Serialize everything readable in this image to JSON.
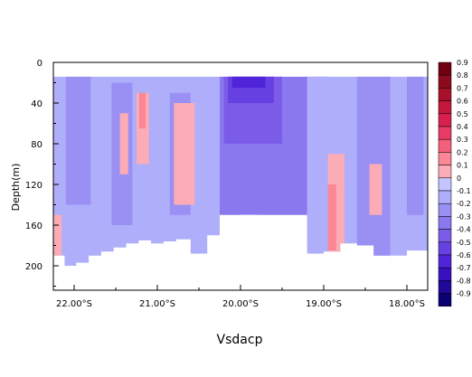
{
  "chart_data": {
    "type": "heatmap",
    "xlabel": "Vsdacp",
    "ylabel": "Depth(m)",
    "x_ticks": [
      "22.00°S",
      "21.00°S",
      "20.00°S",
      "19.00°S",
      "18.00°S"
    ],
    "x_tick_values": [
      22.0,
      21.0,
      20.0,
      19.0,
      18.0
    ],
    "xlim": [
      22.25,
      17.75
    ],
    "y_ticks": [
      "0",
      "40",
      "80",
      "120",
      "160",
      "200"
    ],
    "y_tick_values": [
      0,
      40,
      80,
      120,
      160,
      200
    ],
    "ylim": [
      0,
      224
    ],
    "colorbar_labels": [
      "0.9",
      "0.8",
      "0.7",
      "0.6",
      "0.5",
      "0.4",
      "0.3",
      "0.2",
      "0.1",
      "0",
      "-0.1",
      "-0.2",
      "-0.3",
      "-0.4",
      "-0.5",
      "-0.6",
      "-0.7",
      "-0.8",
      "-0.9"
    ],
    "colorbar_colors": [
      "#6e0010",
      "#8c0a1c",
      "#a8102a",
      "#c4163a",
      "#d8204e",
      "#e83a64",
      "#f4607c",
      "#fa8696",
      "#fcacb6",
      "#c4c4ff",
      "#aeaefa",
      "#9a90f4",
      "#8a78ee",
      "#7a5ce8",
      "#6640e0",
      "#5024d8",
      "#3810c0",
      "#20089a",
      "#0a0070"
    ],
    "data_start_depth": 14,
    "columns": [
      {
        "x": 22.18,
        "bottom": 190
      },
      {
        "x": 22.05,
        "bottom": 207
      },
      {
        "x": 21.9,
        "bottom": 197
      },
      {
        "x": 21.75,
        "bottom": 190
      },
      {
        "x": 21.6,
        "bottom": 186
      },
      {
        "x": 21.45,
        "bottom": 182
      },
      {
        "x": 21.3,
        "bottom": 178
      },
      {
        "x": 21.15,
        "bottom": 175
      },
      {
        "x": 21.0,
        "bottom": 178
      },
      {
        "x": 20.85,
        "bottom": 176
      },
      {
        "x": 20.7,
        "bottom": 174
      },
      {
        "x": 20.5,
        "bottom": 188
      },
      {
        "x": 20.3,
        "bottom": 170
      },
      {
        "x": 20.1,
        "bottom": 152
      },
      {
        "x": 19.9,
        "bottom": 150
      },
      {
        "x": 19.7,
        "bottom": 156
      },
      {
        "x": 19.5,
        "bottom": 165
      },
      {
        "x": 19.3,
        "bottom": 180
      },
      {
        "x": 19.1,
        "bottom": 188
      },
      {
        "x": 18.9,
        "bottom": 186
      },
      {
        "x": 18.7,
        "bottom": 178
      },
      {
        "x": 18.5,
        "bottom": 180
      },
      {
        "x": 18.3,
        "bottom": 190
      },
      {
        "x": 18.1,
        "bottom": 205
      },
      {
        "x": 17.9,
        "bottom": 185
      }
    ],
    "regions": [
      {
        "x0": 22.25,
        "x1": 20.25,
        "y0": 14,
        "y1": 200,
        "value": -0.1
      },
      {
        "x0": 22.1,
        "x1": 21.8,
        "y0": 14,
        "y1": 140,
        "value": -0.2
      },
      {
        "x0": 21.55,
        "x1": 21.3,
        "y0": 20,
        "y1": 160,
        "value": -0.2
      },
      {
        "x0": 20.85,
        "x1": 20.6,
        "y0": 30,
        "y1": 150,
        "value": -0.2
      },
      {
        "x0": 21.25,
        "x1": 21.1,
        "y0": 30,
        "y1": 100,
        "value": 0.1
      },
      {
        "x0": 21.45,
        "x1": 21.35,
        "y0": 50,
        "y1": 110,
        "value": 0.1
      },
      {
        "x0": 20.8,
        "x1": 20.55,
        "y0": 40,
        "y1": 140,
        "value": 0.1
      },
      {
        "x0": 21.22,
        "x1": 21.14,
        "y0": 30,
        "y1": 65,
        "value": 0.2
      },
      {
        "x0": 20.25,
        "x1": 18.95,
        "y0": 14,
        "y1": 150,
        "value": -0.3
      },
      {
        "x0": 20.2,
        "x1": 19.5,
        "y0": 14,
        "y1": 80,
        "value": -0.4
      },
      {
        "x0": 20.15,
        "x1": 19.6,
        "y0": 14,
        "y1": 40,
        "value": -0.5
      },
      {
        "x0": 20.1,
        "x1": 19.7,
        "y0": 14,
        "y1": 25,
        "value": -0.6
      },
      {
        "x0": 19.2,
        "x1": 17.75,
        "y0": 14,
        "y1": 190,
        "value": -0.1
      },
      {
        "x0": 18.6,
        "x1": 18.2,
        "y0": 14,
        "y1": 200,
        "value": -0.2
      },
      {
        "x0": 18.95,
        "x1": 18.75,
        "y0": 90,
        "y1": 190,
        "value": 0.1
      },
      {
        "x0": 18.95,
        "x1": 18.85,
        "y0": 120,
        "y1": 185,
        "value": 0.2
      },
      {
        "x0": 18.45,
        "x1": 18.3,
        "y0": 100,
        "y1": 150,
        "value": 0.1
      },
      {
        "x0": 18.0,
        "x1": 17.8,
        "y0": 14,
        "y1": 150,
        "value": -0.2
      },
      {
        "x0": 22.25,
        "x1": 22.15,
        "y0": 150,
        "y1": 190,
        "value": 0.1
      }
    ]
  }
}
